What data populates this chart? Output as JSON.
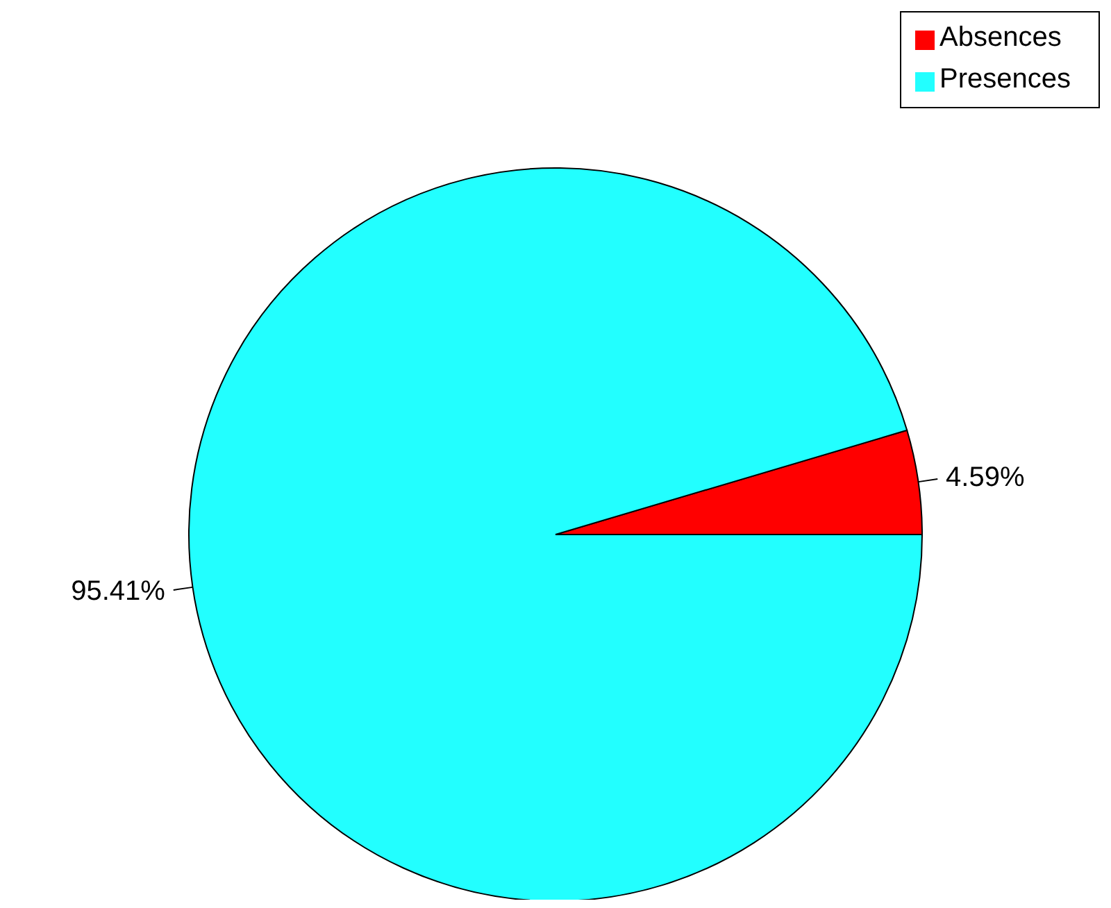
{
  "chart_data": {
    "type": "pie",
    "categories": [
      "Absences",
      "Presences"
    ],
    "values": [
      4.59,
      95.41
    ],
    "colors": [
      "#ff0000",
      "#22ffff"
    ],
    "value_labels": [
      "4.59%",
      "95.41%"
    ],
    "legend": "top right"
  }
}
